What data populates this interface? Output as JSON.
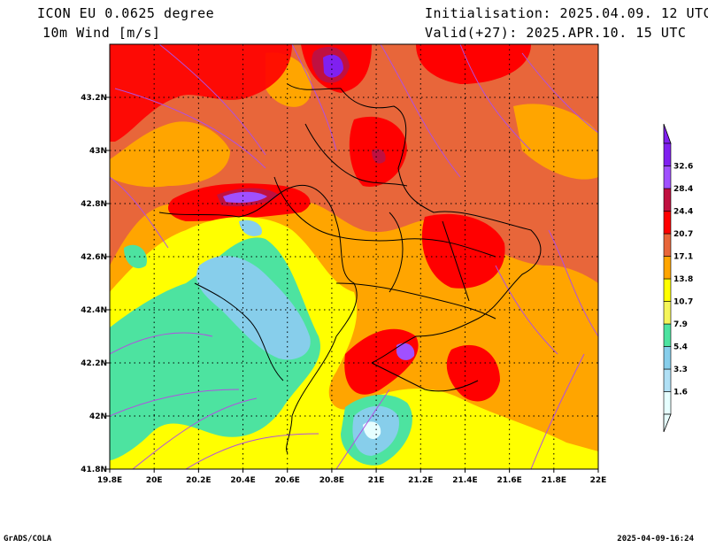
{
  "header": {
    "model": "ICON EU 0.0625 degree",
    "variable": "10m Wind [m/s]",
    "init": "Initialisation: 2025.04.09. 12 UTC",
    "valid": "Valid(+27): 2025.APR.10. 15 UTC"
  },
  "footer": {
    "left": "GrADS/COLA",
    "right": "2025-04-09-16:24"
  },
  "map": {
    "lon_range": [
      19.8,
      22.0
    ],
    "lat_range": [
      41.8,
      43.4
    ],
    "lon_ticks": [
      "19.8E",
      "20E",
      "20.2E",
      "20.4E",
      "20.6E",
      "20.8E",
      "21E",
      "21.2E",
      "21.4E",
      "21.6E",
      "21.8E",
      "22E"
    ],
    "lat_ticks": [
      "41.8N",
      "42N",
      "42.2N",
      "42.4N",
      "42.6N",
      "42.8N",
      "43N",
      "43.2N"
    ],
    "grid": "dotted"
  },
  "colorbar": {
    "labels": [
      "1.6",
      "3.3",
      "5.4",
      "7.9",
      "10.7",
      "13.8",
      "17.1",
      "20.7",
      "24.4",
      "28.4",
      "32.6"
    ],
    "colors": [
      "#e6ffff",
      "#b0e0f5",
      "#87ceeb",
      "#4de3a0",
      "#f5f55a",
      "#ffff00",
      "#ffa500",
      "#e8663a",
      "#ff0000",
      "#c01040",
      "#a050ff",
      "#8020f0"
    ]
  },
  "palette": {
    "streamline": "#b050e0",
    "border": "#000000"
  }
}
